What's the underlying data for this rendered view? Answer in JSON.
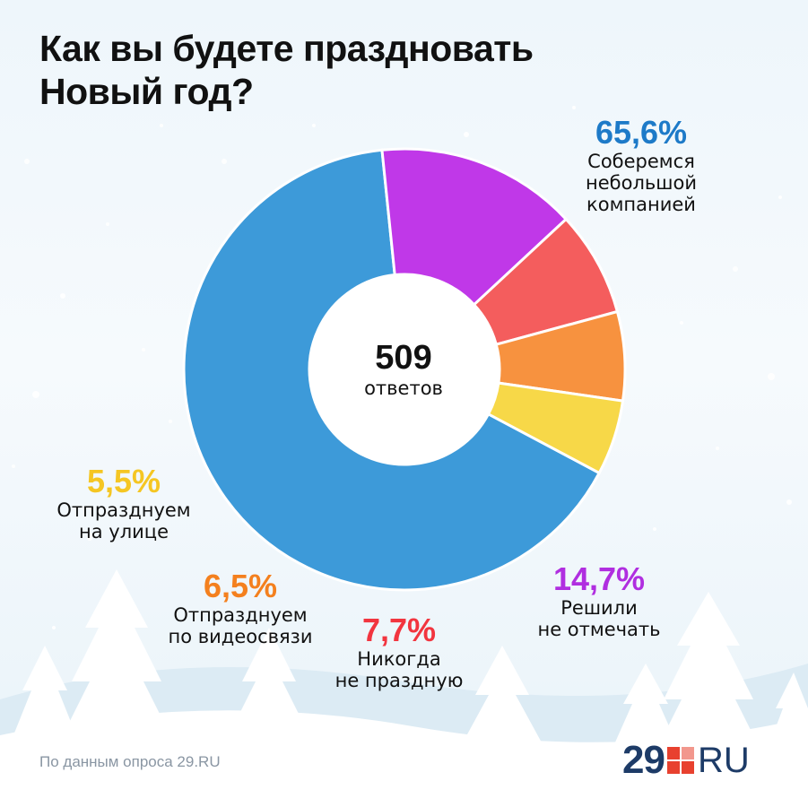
{
  "title_line1": "Как вы будете праздновать",
  "title_line2": "Новый год?",
  "center_total": "509",
  "center_unit": "ответов",
  "source_text": "По данным опроса 29.RU",
  "logo": {
    "number": "29",
    "suffix": "RU",
    "colors": [
      "#e8412f",
      "#1d3b67"
    ]
  },
  "chart_data": {
    "type": "pie",
    "donut": true,
    "total_responses": 509,
    "slices": [
      {
        "label_line1": "Соберемся",
        "label_line2": "небольшой",
        "label_line3": "компанией",
        "value": 65.6,
        "value_text": "65,6%",
        "color": "#3d9ad9",
        "label_color": "#1d7ac8"
      },
      {
        "label_line1": "Решили",
        "label_line2": "не отмечать",
        "value": 14.7,
        "value_text": "14,7%",
        "color": "#c038e8",
        "label_color": "#b02ee0"
      },
      {
        "label_line1": "Никогда",
        "label_line2": "не праздную",
        "value": 7.7,
        "value_text": "7,7%",
        "color": "#f45d5d",
        "label_color": "#f2353f"
      },
      {
        "label_line1": "Отпразднуем",
        "label_line2": "по видеосвязи",
        "value": 6.5,
        "value_text": "6,5%",
        "color": "#f7923f",
        "label_color": "#f4801e"
      },
      {
        "label_line1": "Отпразднуем",
        "label_line2": "на улице",
        "value": 5.5,
        "value_text": "5,5%",
        "color": "#f7d848",
        "label_color": "#f5c623"
      }
    ]
  }
}
